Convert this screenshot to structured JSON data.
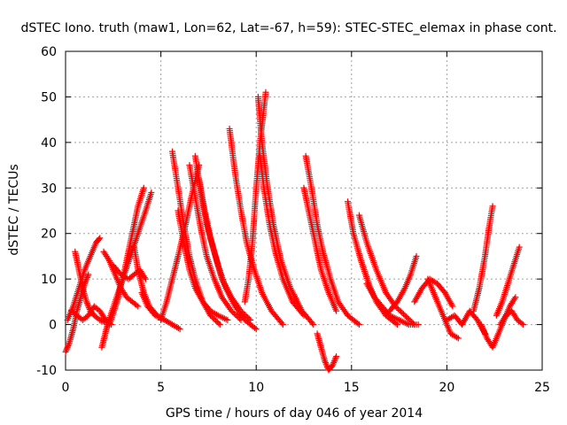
{
  "chart_data": {
    "type": "scatter",
    "title": "dSTEC Iono. truth (maw1, Lon=62, Lat=-67, h=59): STEC-STEC_elemax in phase cont.",
    "xlabel": "GPS time / hours of day 046 of year 2014",
    "ylabel": "dSTEC  / TECUs",
    "xlim": [
      0,
      25
    ],
    "ylim": [
      -10,
      60
    ],
    "xticks": [
      0,
      5,
      10,
      15,
      20,
      25
    ],
    "yticks": [
      -10,
      0,
      10,
      20,
      30,
      40,
      50,
      60
    ],
    "xtick_labels": [
      "0",
      "5",
      "10",
      "15",
      "20",
      "25"
    ],
    "ytick_labels": [
      "-10",
      "0",
      "10",
      "20",
      "30",
      "40",
      "50",
      "60"
    ],
    "grid": true,
    "marker": "+",
    "color": "#ff0000",
    "series": [
      {
        "x": [
          0.0,
          0.2,
          0.4,
          0.6,
          0.8,
          1.0,
          1.2
        ],
        "y": [
          -6,
          -4,
          -1,
          3,
          6,
          9,
          11
        ]
      },
      {
        "x": [
          0.1,
          0.4,
          0.7,
          1.0,
          1.3,
          1.6,
          1.8
        ],
        "y": [
          1,
          4,
          8,
          12,
          15,
          18,
          19
        ]
      },
      {
        "x": [
          0.5,
          0.7,
          0.9,
          1.1,
          1.3,
          1.5,
          1.8,
          2.1
        ],
        "y": [
          16,
          12,
          8,
          5,
          3,
          2,
          1,
          0.5
        ]
      },
      {
        "x": [
          0.3,
          0.6,
          0.9,
          1.2,
          1.5,
          1.8,
          2.1,
          2.4
        ],
        "y": [
          3,
          2,
          1,
          2,
          4,
          3,
          1,
          0
        ]
      },
      {
        "x": [
          1.9,
          2.2,
          2.6,
          3.0,
          3.4,
          3.8,
          4.2,
          4.5
        ],
        "y": [
          -5,
          0,
          5,
          10,
          15,
          20,
          25,
          29
        ]
      },
      {
        "x": [
          2.0,
          2.3,
          2.6,
          2.9,
          3.2,
          3.5,
          3.8
        ],
        "y": [
          16,
          14,
          11,
          8,
          6,
          5,
          4
        ]
      },
      {
        "x": [
          2.3,
          2.7,
          3.1,
          3.5,
          3.8,
          4.1
        ],
        "y": [
          0,
          5,
          12,
          20,
          26,
          30
        ]
      },
      {
        "x": [
          2.5,
          2.9,
          3.3,
          3.6,
          3.9,
          4.2
        ],
        "y": [
          13,
          11,
          10,
          11,
          12,
          10
        ]
      },
      {
        "x": [
          3.6,
          3.8,
          4.1,
          4.4,
          4.8,
          5.2
        ],
        "y": [
          17,
          12,
          7,
          4,
          2,
          1
        ]
      },
      {
        "x": [
          4.0,
          4.3,
          4.7,
          5.2,
          5.6,
          6.0
        ],
        "y": [
          7,
          4,
          2,
          1,
          0,
          -1
        ]
      },
      {
        "x": [
          5.0,
          5.3,
          5.6,
          5.9,
          6.3,
          6.6,
          7.0
        ],
        "y": [
          1,
          5,
          10,
          15,
          22,
          28,
          35
        ]
      },
      {
        "x": [
          5.6,
          5.9,
          6.2,
          6.5,
          6.8,
          7.2,
          7.6,
          8.1
        ],
        "y": [
          38,
          30,
          22,
          15,
          10,
          5,
          2,
          0
        ]
      },
      {
        "x": [
          5.9,
          6.2,
          6.5,
          6.8,
          7.2,
          7.6,
          8.0,
          8.5
        ],
        "y": [
          25,
          18,
          12,
          8,
          5,
          3,
          2,
          1
        ]
      },
      {
        "x": [
          6.5,
          6.8,
          7.1,
          7.4,
          7.8,
          8.2,
          8.7,
          9.2
        ],
        "y": [
          35,
          28,
          21,
          15,
          10,
          6,
          3,
          1
        ]
      },
      {
        "x": [
          6.8,
          7.1,
          7.4,
          7.8,
          8.2,
          8.7,
          9.2,
          9.7
        ],
        "y": [
          37,
          29,
          22,
          16,
          10,
          6,
          3,
          1
        ]
      },
      {
        "x": [
          7.0,
          7.3,
          7.6,
          8.0,
          8.4,
          8.9,
          9.4,
          10.0
        ],
        "y": [
          32,
          25,
          19,
          13,
          8,
          4,
          1,
          -1
        ]
      },
      {
        "x": [
          8.6,
          8.9,
          9.2,
          9.5,
          9.9,
          10.3,
          10.8,
          11.4
        ],
        "y": [
          43,
          33,
          25,
          18,
          12,
          7,
          3,
          0
        ]
      },
      {
        "x": [
          9.4,
          9.6,
          9.8,
          10.0,
          10.2,
          10.5
        ],
        "y": [
          5,
          10,
          18,
          30,
          40,
          51
        ]
      },
      {
        "x": [
          10.1,
          10.3,
          10.6,
          10.9,
          11.3,
          11.8,
          12.4,
          13.0
        ],
        "y": [
          50,
          40,
          30,
          22,
          14,
          8,
          3,
          0
        ]
      },
      {
        "x": [
          10.2,
          10.4,
          10.7,
          11.0,
          11.4,
          11.9,
          12.5
        ],
        "y": [
          37,
          30,
          22,
          16,
          10,
          5,
          2
        ]
      },
      {
        "x": [
          12.6,
          12.9,
          13.2,
          13.5,
          13.9,
          14.3,
          14.8,
          15.4
        ],
        "y": [
          37,
          30,
          22,
          16,
          10,
          5,
          2,
          0
        ]
      },
      {
        "x": [
          12.5,
          12.8,
          13.1,
          13.4,
          13.8,
          14.2
        ],
        "y": [
          30,
          24,
          18,
          12,
          7,
          3
        ]
      },
      {
        "x": [
          13.2,
          13.4,
          13.6,
          13.8,
          14.0,
          14.2
        ],
        "y": [
          -2,
          -5,
          -8,
          -10,
          -9,
          -7
        ]
      },
      {
        "x": [
          14.8,
          15.1,
          15.5,
          15.9,
          16.3,
          16.8,
          17.4
        ],
        "y": [
          27,
          20,
          14,
          9,
          5,
          2,
          0
        ]
      },
      {
        "x": [
          15.4,
          15.8,
          16.3,
          16.8,
          17.3,
          17.8,
          18.3
        ],
        "y": [
          24,
          18,
          12,
          7,
          4,
          2,
          0
        ]
      },
      {
        "x": [
          15.8,
          16.2,
          16.6,
          17.0,
          17.5,
          18.0,
          18.5
        ],
        "y": [
          9,
          6,
          4,
          2,
          1,
          0,
          0
        ]
      },
      {
        "x": [
          17.0,
          17.4,
          17.8,
          18.1,
          18.4
        ],
        "y": [
          3,
          5,
          8,
          11,
          15
        ]
      },
      {
        "x": [
          18.3,
          18.7,
          19.1,
          19.5,
          19.9,
          20.3
        ],
        "y": [
          5,
          8,
          10,
          9,
          7,
          4
        ]
      },
      {
        "x": [
          19.0,
          19.3,
          19.6,
          19.9,
          20.2,
          20.6
        ],
        "y": [
          10,
          7,
          4,
          1,
          -2,
          -3
        ]
      },
      {
        "x": [
          20.0,
          20.4,
          20.8,
          21.2,
          21.6,
          22.0
        ],
        "y": [
          1,
          2,
          0,
          3,
          1,
          -2
        ]
      },
      {
        "x": [
          21.4,
          21.7,
          22.0,
          22.2,
          22.4
        ],
        "y": [
          3,
          8,
          15,
          21,
          26
        ]
      },
      {
        "x": [
          21.8,
          22.1,
          22.4,
          22.7,
          23.0,
          23.3,
          23.6
        ],
        "y": [
          0,
          -3,
          -5,
          -2,
          1,
          4,
          6
        ]
      },
      {
        "x": [
          22.6,
          22.9,
          23.2,
          23.5,
          23.8
        ],
        "y": [
          2,
          5,
          9,
          13,
          17
        ]
      },
      {
        "x": [
          22.8,
          23.1,
          23.4,
          23.7,
          24.0
        ],
        "y": [
          0,
          2,
          3,
          1,
          0
        ]
      }
    ]
  }
}
